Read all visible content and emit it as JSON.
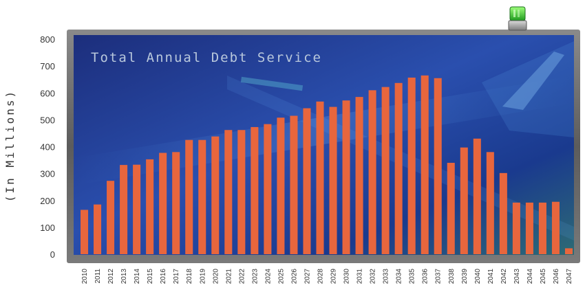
{
  "chart_data": {
    "type": "bar",
    "title": "Total Annual Debt Service",
    "ylabel": "(In Millions)",
    "xlabel": "",
    "ylim": [
      0,
      800
    ],
    "yticks": [
      0,
      100,
      200,
      300,
      400,
      500,
      600,
      700,
      800
    ],
    "grid": false,
    "categories": [
      "2010",
      "2011",
      "2012",
      "2013",
      "2014",
      "2015",
      "2016",
      "2017",
      "2018",
      "2019",
      "2020",
      "2021",
      "2022",
      "2023",
      "2024",
      "2025",
      "2026",
      "2027",
      "2028",
      "2029",
      "2030",
      "2031",
      "2032",
      "2033",
      "2034",
      "2035",
      "2036",
      "2037",
      "2038",
      "2039",
      "2040",
      "2041",
      "2042",
      "2043",
      "2044",
      "2045",
      "2046",
      "2047"
    ],
    "values": [
      165,
      185,
      273,
      332,
      333,
      353,
      377,
      380,
      425,
      425,
      438,
      462,
      462,
      473,
      484,
      508,
      515,
      543,
      568,
      548,
      572,
      585,
      610,
      622,
      637,
      657,
      665,
      655,
      340,
      397,
      430,
      380,
      302,
      192,
      192,
      192,
      195,
      22
    ],
    "bar_color": "#e8663d"
  },
  "ui": {
    "indicator_icon": "green-light-icon",
    "indicator_color": "#44cc44",
    "panel_frame_color": "#6a6a6a"
  }
}
